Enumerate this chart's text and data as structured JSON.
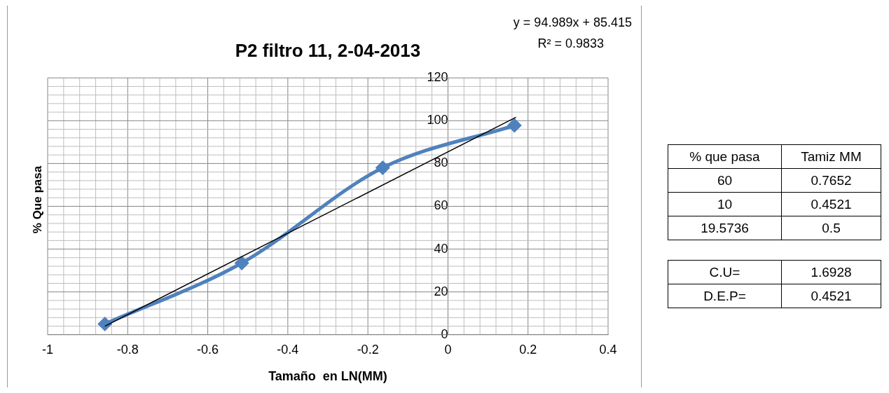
{
  "chart_data": [
    {
      "type": "line",
      "title": "P2 filtro 11, 2-04-2013",
      "xlabel": "Tamaño  en LN(MM)",
      "ylabel": "% Que pasa",
      "series": [
        {
          "color": "#4f81bd",
          "x": [
            -0.857,
            -0.515,
            -0.163,
            0.166
          ],
          "values": [
            5,
            33.5,
            78,
            97.8
          ],
          "marker": "diamond"
        },
        {
          "type": "line",
          "color": "#000000",
          "x": [
            -0.857,
            0.17
          ],
          "values": [
            4,
            101.6
          ],
          "marker": "none"
        }
      ],
      "annotations": [
        "y = 94.989x + 85.415",
        "R² = 0.9833"
      ],
      "xlim": [
        -1,
        0.4
      ],
      "xticks": [
        -1,
        -0.8,
        -0.6,
        -0.4,
        -0.2,
        0,
        0.2,
        0.4
      ],
      "ylim": [
        0,
        120
      ],
      "yticks": [
        0,
        20,
        40,
        60,
        80,
        100,
        120
      ],
      "grid": true,
      "legend": false
    },
    {
      "type": "other",
      "annotations": [
        "% que pasa",
        "Tamiz MM",
        "60",
        "0.7652",
        "10",
        "0.4521",
        "19.5736",
        "0.5"
      ]
    },
    {
      "type": "other",
      "annotations": [
        "C.U=",
        "1.6928",
        "D.E.P=",
        "0.4521"
      ]
    }
  ]
}
